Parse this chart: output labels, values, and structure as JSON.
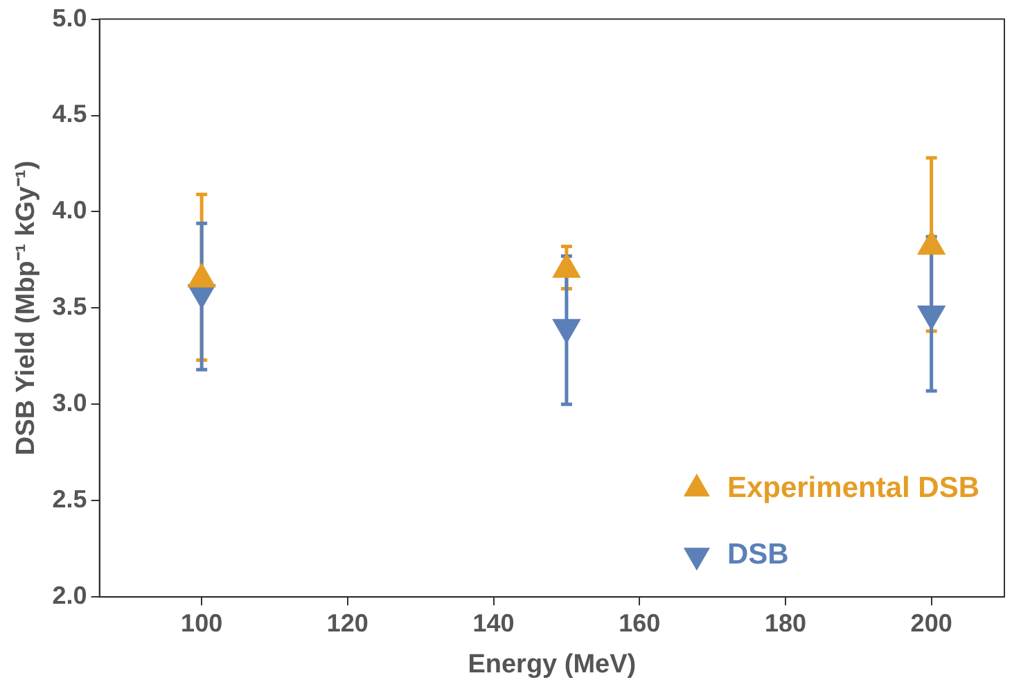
{
  "chart_data": {
    "type": "scatter",
    "xlabel": "Energy (MeV)",
    "ylabel": "DSB Yield (Mbp⁻¹ kGy⁻¹)",
    "xlim": [
      86,
      210
    ],
    "xticks": [
      100,
      120,
      140,
      160,
      180,
      200
    ],
    "ylim": [
      2,
      5
    ],
    "yticks": [
      {
        "value": 2,
        "label": "2.0"
      },
      {
        "value": 2.5,
        "label": "2.5"
      },
      {
        "value": 3,
        "label": "3.0"
      },
      {
        "value": 3.5,
        "label": "3.5"
      },
      {
        "value": 4,
        "label": "4.0"
      },
      {
        "value": 4.5,
        "label": "4.5"
      },
      {
        "value": 5,
        "label": "5.0"
      }
    ],
    "x": [
      100,
      150,
      200
    ],
    "grid": false,
    "legend": "bottom right",
    "series": [
      {
        "name": "Experimental DSB",
        "color": "#e59d25",
        "marker": "triangle",
        "values": [
          3.65,
          3.7,
          3.82
        ],
        "errors": [
          [
            3.23,
            4.09
          ],
          [
            3.6,
            3.82
          ],
          [
            3.38,
            4.28
          ]
        ]
      },
      {
        "name": "DSB",
        "color": "#5b80b8",
        "marker": "triangle",
        "values": [
          3.58,
          3.4,
          3.47
        ],
        "errors": [
          [
            3.18,
            3.94
          ],
          [
            3.0,
            3.77
          ],
          [
            3.07,
            3.87
          ]
        ]
      }
    ]
  }
}
